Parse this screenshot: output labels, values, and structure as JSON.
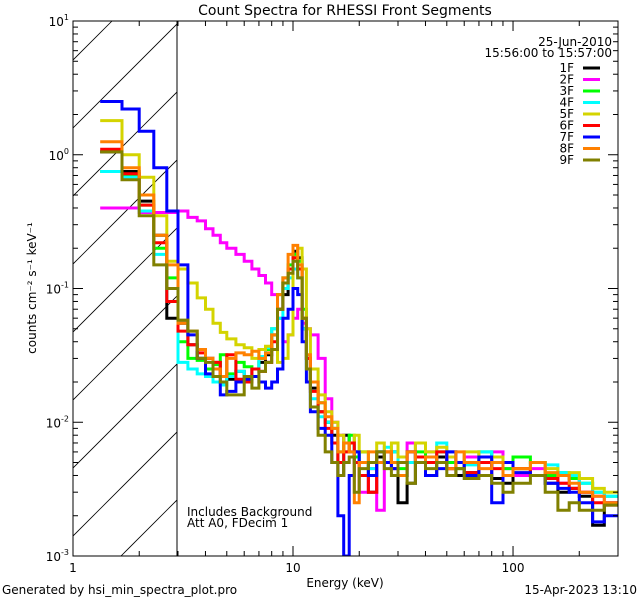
{
  "chart_data": {
    "type": "line",
    "title": "Count Spectra for RHESSI Front Segments",
    "xlabel": "Energy (keV)",
    "ylabel": "counts cm⁻² s⁻¹ keV⁻¹",
    "xscale": "log",
    "yscale": "log",
    "xlim": [
      1,
      300
    ],
    "ylim": [
      0.001,
      10
    ],
    "x_ticks": [
      {
        "value": 1,
        "label": "1"
      },
      {
        "value": 10,
        "label": "10"
      },
      {
        "value": 100,
        "label": "100"
      }
    ],
    "y_ticks": [
      {
        "value": 10,
        "base": "10",
        "exp": "1"
      },
      {
        "value": 1,
        "base": "10",
        "exp": "0"
      },
      {
        "value": 0.1,
        "base": "10",
        "exp": "-1"
      },
      {
        "value": 0.01,
        "base": "10",
        "exp": "-2"
      },
      {
        "value": 0.001,
        "base": "10",
        "exp": "-3"
      }
    ],
    "hatched_region_keV": [
      1,
      3
    ],
    "date": "25-Jun-2010",
    "time_range": "15:56:00 to 15:57:00",
    "annotations": [
      "Includes Background",
      "Att A0, FDecim 1"
    ],
    "legend_position": "top-right",
    "energy_edges": [
      1.33,
      1.67,
      2,
      2.33,
      2.67,
      3,
      3.33,
      3.67,
      4,
      4.33,
      4.67,
      5,
      5.5,
      6,
      6.5,
      7,
      7.5,
      8,
      8.5,
      9,
      9.5,
      10,
      10.5,
      11,
      11.5,
      12,
      13,
      14,
      15,
      16,
      17,
      18,
      19,
      20,
      22,
      24,
      26,
      28,
      30,
      33,
      36,
      40,
      45,
      50,
      55,
      60,
      70,
      80,
      90,
      100,
      120,
      140,
      160,
      180,
      200,
      230,
      260,
      300
    ],
    "series": [
      {
        "name": "1F",
        "color": "#000000",
        "values": [
          1.05,
          0.75,
          0.45,
          0.25,
          0.06,
          0.055,
          0.038,
          0.03,
          0.03,
          0.028,
          0.022,
          0.021,
          0.024,
          0.022,
          0.025,
          0.028,
          0.032,
          0.045,
          0.07,
          0.09,
          0.14,
          0.19,
          0.17,
          0.05,
          0.03,
          0.018,
          0.012,
          0.01,
          0.008,
          0.004,
          0.008,
          0.007,
          0.006,
          0.005,
          0.003,
          0.0055,
          0.005,
          0.006,
          0.0025,
          0.0035,
          0.005,
          0.004,
          0.0055,
          0.0045,
          0.004,
          0.0042,
          0.005,
          0.0038,
          0.0035,
          0.0045,
          0.004,
          0.0035,
          0.003,
          0.0032,
          0.0028,
          0.0017,
          0.0025
        ]
      },
      {
        "name": "2F",
        "color": "#ff00ff",
        "values": [
          0.4,
          0.4,
          0.37,
          0.37,
          0.37,
          0.38,
          0.34,
          0.32,
          0.28,
          0.25,
          0.22,
          0.2,
          0.18,
          0.16,
          0.14,
          0.125,
          0.11,
          0.09,
          0.06,
          0.04,
          0.045,
          0.06,
          0.07,
          0.055,
          0.05,
          0.045,
          0.03,
          0.015,
          0.01,
          0.008,
          0.007,
          0.006,
          0.005,
          0.003,
          0.0045,
          0.0022,
          0.005,
          0.006,
          0.004,
          0.007,
          0.005,
          0.006,
          0.005,
          0.006,
          0.005,
          0.0055,
          0.004,
          0.006,
          0.0045,
          0.004,
          0.0045,
          0.004,
          0.0035,
          0.004,
          0.003,
          0.0028,
          0.0025
        ]
      },
      {
        "name": "3F",
        "color": "#00ff00",
        "values": [
          0.75,
          0.7,
          0.42,
          0.2,
          0.12,
          0.04,
          0.03,
          0.029,
          0.025,
          0.027,
          0.032,
          0.023,
          0.028,
          0.026,
          0.025,
          0.03,
          0.035,
          0.05,
          0.09,
          0.12,
          0.15,
          0.18,
          0.16,
          0.07,
          0.03,
          0.02,
          0.014,
          0.01,
          0.009,
          0.006,
          0.007,
          0.008,
          0.0055,
          0.006,
          0.004,
          0.006,
          0.005,
          0.006,
          0.0045,
          0.005,
          0.006,
          0.0055,
          0.006,
          0.005,
          0.0045,
          0.005,
          0.006,
          0.005,
          0.0045,
          0.0055,
          0.005,
          0.004,
          0.0042,
          0.0038,
          0.0035,
          0.003,
          0.0028
        ]
      },
      {
        "name": "4F",
        "color": "#00ffff",
        "values": [
          0.75,
          0.68,
          0.38,
          0.18,
          0.08,
          0.028,
          0.025,
          0.023,
          0.022,
          0.02,
          0.019,
          0.022,
          0.024,
          0.022,
          0.025,
          0.031,
          0.036,
          0.05,
          0.06,
          0.1,
          0.12,
          0.14,
          0.12,
          0.05,
          0.025,
          0.015,
          0.011,
          0.01,
          0.009,
          0.005,
          0.006,
          0.007,
          0.006,
          0.005,
          0.0045,
          0.006,
          0.0065,
          0.006,
          0.004,
          0.005,
          0.0055,
          0.005,
          0.007,
          0.006,
          0.005,
          0.0048,
          0.006,
          0.005,
          0.004,
          0.0045,
          0.005,
          0.0048,
          0.0042,
          0.004,
          0.0035,
          0.003,
          0.0028
        ]
      },
      {
        "name": "5F",
        "color": "#d4d400",
        "values": [
          1.8,
          1.0,
          0.68,
          0.35,
          0.16,
          0.14,
          0.11,
          0.085,
          0.07,
          0.055,
          0.047,
          0.042,
          0.038,
          0.036,
          0.03,
          0.035,
          0.037,
          0.035,
          0.028,
          0.03,
          0.045,
          0.17,
          0.2,
          0.14,
          0.05,
          0.025,
          0.016,
          0.012,
          0.01,
          0.008,
          0.006,
          0.007,
          0.008,
          0.006,
          0.005,
          0.007,
          0.006,
          0.007,
          0.0055,
          0.006,
          0.007,
          0.006,
          0.0065,
          0.0055,
          0.005,
          0.006,
          0.005,
          0.0055,
          0.005,
          0.0045,
          0.005,
          0.0045,
          0.004,
          0.0042,
          0.0038,
          0.0032,
          0.003
        ]
      },
      {
        "name": "6F",
        "color": "#ff0000",
        "values": [
          1.1,
          0.72,
          0.42,
          0.22,
          0.08,
          0.048,
          0.038,
          0.033,
          0.03,
          0.028,
          0.022,
          0.032,
          0.021,
          0.02,
          0.025,
          0.024,
          0.028,
          0.04,
          0.07,
          0.11,
          0.14,
          0.17,
          0.14,
          0.06,
          0.03,
          0.017,
          0.012,
          0.009,
          0.007,
          0.005,
          0.006,
          0.007,
          0.005,
          0.004,
          0.003,
          0.005,
          0.006,
          0.0045,
          0.005,
          0.006,
          0.0055,
          0.005,
          0.006,
          0.0045,
          0.005,
          0.0042,
          0.005,
          0.0045,
          0.004,
          0.0045,
          0.004,
          0.0038,
          0.0035,
          0.0032,
          0.003,
          0.0025,
          0.0024
        ]
      },
      {
        "name": "7F",
        "color": "#0000ff",
        "values": [
          2.5,
          2.2,
          1.5,
          0.8,
          0.38,
          0.15,
          0.045,
          0.03,
          0.023,
          0.022,
          0.016,
          0.017,
          0.02,
          0.021,
          0.022,
          0.02,
          0.018,
          0.02,
          0.025,
          0.06,
          0.07,
          0.1,
          0.09,
          0.04,
          0.02,
          0.012,
          0.009,
          0.008,
          0.005,
          0.002,
          0.001,
          0.004,
          0.006,
          0.005,
          0.004,
          0.006,
          0.005,
          0.0045,
          0.004,
          0.006,
          0.005,
          0.004,
          0.0045,
          0.006,
          0.005,
          0.004,
          0.0055,
          0.0025,
          0.005,
          0.0042,
          0.004,
          0.0035,
          0.0032,
          0.003,
          0.0025,
          0.0018,
          0.002
        ]
      },
      {
        "name": "8F",
        "color": "#ff8000",
        "values": [
          1.25,
          0.8,
          0.5,
          0.25,
          0.15,
          0.055,
          0.048,
          0.035,
          0.03,
          0.025,
          0.022,
          0.03,
          0.033,
          0.032,
          0.034,
          0.03,
          0.033,
          0.045,
          0.09,
          0.12,
          0.18,
          0.21,
          0.15,
          0.06,
          0.032,
          0.02,
          0.014,
          0.011,
          0.009,
          0.006,
          0.007,
          0.006,
          0.0025,
          0.005,
          0.006,
          0.005,
          0.006,
          0.005,
          0.004,
          0.006,
          0.005,
          0.0055,
          0.005,
          0.0045,
          0.006,
          0.005,
          0.0045,
          0.005,
          0.004,
          0.0045,
          0.005,
          0.0042,
          0.004,
          0.0035,
          0.003,
          0.0028,
          0.0025
        ]
      },
      {
        "name": "9F",
        "color": "#808000",
        "values": [
          1.05,
          0.65,
          0.35,
          0.15,
          0.1,
          0.058,
          0.048,
          0.03,
          0.028,
          0.022,
          0.02,
          0.016,
          0.016,
          0.022,
          0.018,
          0.024,
          0.028,
          0.035,
          0.07,
          0.11,
          0.13,
          0.16,
          0.12,
          0.06,
          0.025,
          0.013,
          0.008,
          0.006,
          0.005,
          0.004,
          0.005,
          0.0055,
          0.003,
          0.0045,
          0.005,
          0.006,
          0.0045,
          0.004,
          0.005,
          0.0035,
          0.005,
          0.0045,
          0.005,
          0.004,
          0.0045,
          0.0038,
          0.004,
          0.0035,
          0.003,
          0.0035,
          0.004,
          0.003,
          0.0022,
          0.0025,
          0.0022,
          0.0022,
          0.0024
        ]
      }
    ]
  },
  "footer": {
    "generated_by": "Generated by hsi_min_spectra_plot.pro",
    "timestamp": "15-Apr-2023 13:10"
  }
}
